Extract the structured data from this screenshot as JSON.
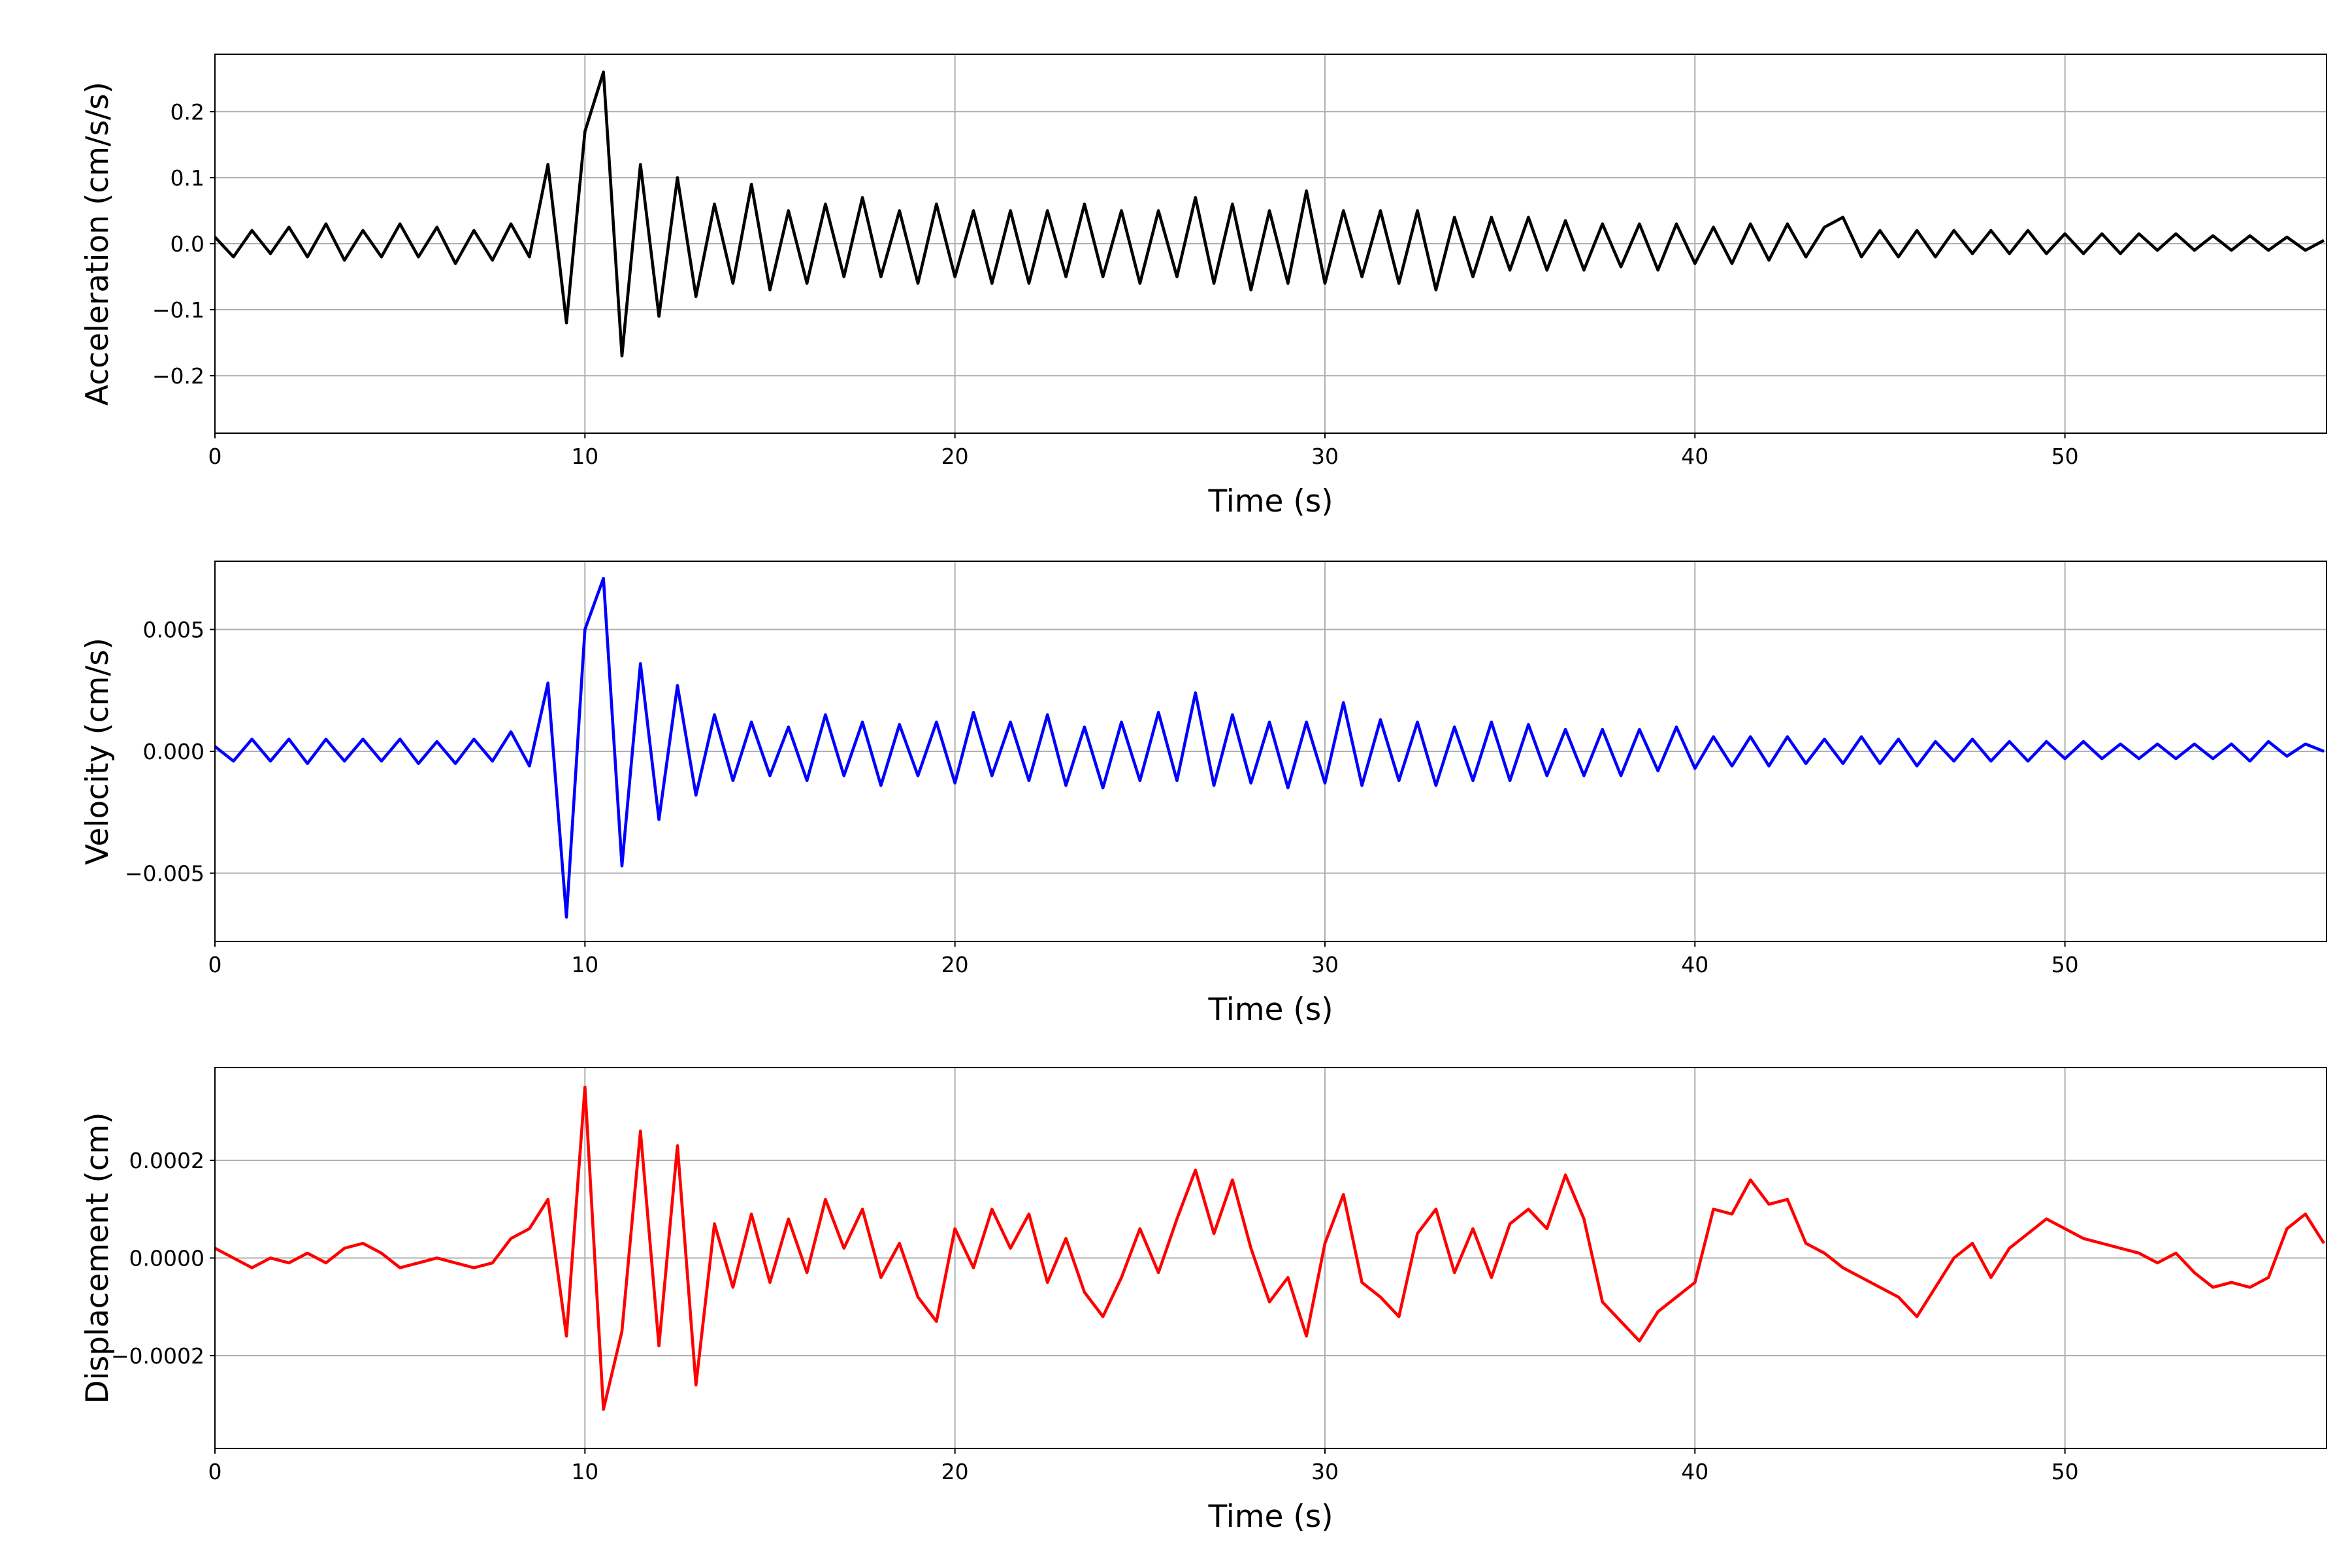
{
  "chart_data": [
    {
      "type": "line",
      "xlabel": "Time (s)",
      "ylabel": "Acceleration (cm/s/s)",
      "color": "#000000",
      "grid": true,
      "xlim": [
        0,
        57.07
      ],
      "xticks": [
        0,
        10,
        20,
        30,
        40,
        50
      ],
      "ylim": [
        -0.287,
        0.287
      ],
      "yticks": [
        {
          "value": -0.2,
          "label": "−0.2"
        },
        {
          "value": -0.1,
          "label": "−0.1"
        },
        {
          "value": 0,
          "label": "0.0"
        },
        {
          "value": 0.1,
          "label": "0.1"
        },
        {
          "value": 0.2,
          "label": "0.2"
        }
      ],
      "x": [
        0,
        0.5,
        1,
        1.5,
        2,
        2.5,
        3,
        3.5,
        4,
        4.5,
        5,
        5.5,
        6,
        6.5,
        7,
        7.5,
        8,
        8.5,
        9,
        9.5,
        10,
        10.5,
        11,
        11.5,
        12,
        12.5,
        13,
        13.5,
        14,
        14.5,
        15,
        15.5,
        16,
        16.5,
        17,
        17.5,
        18,
        18.5,
        19,
        19.5,
        20,
        20.5,
        21,
        21.5,
        22,
        22.5,
        23,
        23.5,
        24,
        24.5,
        25,
        25.5,
        26,
        26.5,
        27,
        27.5,
        28,
        28.5,
        29,
        29.5,
        30,
        30.5,
        31,
        31.5,
        32,
        32.5,
        33,
        33.5,
        34,
        34.5,
        35,
        35.5,
        36,
        36.5,
        37,
        37.5,
        38,
        38.5,
        39,
        39.5,
        40,
        40.5,
        41,
        41.5,
        42,
        42.5,
        43,
        43.5,
        44,
        44.5,
        45,
        45.5,
        46,
        46.5,
        47,
        47.5,
        48,
        48.5,
        49,
        49.5,
        50,
        50.5,
        51,
        51.5,
        52,
        52.5,
        53,
        53.5,
        54,
        54.5,
        55,
        55.5,
        56,
        56.5,
        57
      ],
      "values": [
        0.01,
        -0.02,
        0.02,
        -0.015,
        0.025,
        -0.02,
        0.03,
        -0.025,
        0.02,
        -0.02,
        0.03,
        -0.02,
        0.025,
        -0.03,
        0.02,
        -0.025,
        0.03,
        -0.02,
        0.12,
        -0.12,
        0.17,
        0.26,
        -0.17,
        0.12,
        -0.11,
        0.1,
        -0.08,
        0.06,
        -0.06,
        0.09,
        -0.07,
        0.05,
        -0.06,
        0.06,
        -0.05,
        0.07,
        -0.05,
        0.05,
        -0.06,
        0.06,
        -0.05,
        0.05,
        -0.06,
        0.05,
        -0.06,
        0.05,
        -0.05,
        0.06,
        -0.05,
        0.05,
        -0.06,
        0.05,
        -0.05,
        0.07,
        -0.06,
        0.06,
        -0.07,
        0.05,
        -0.06,
        0.08,
        -0.06,
        0.05,
        -0.05,
        0.05,
        -0.06,
        0.05,
        -0.07,
        0.04,
        -0.05,
        0.04,
        -0.04,
        0.04,
        -0.04,
        0.035,
        -0.04,
        0.03,
        -0.035,
        0.03,
        -0.04,
        0.03,
        -0.03,
        0.025,
        -0.03,
        0.03,
        -0.025,
        0.03,
        -0.02,
        0.025,
        0.04,
        -0.02,
        0.02,
        -0.02,
        0.02,
        -0.02,
        0.02,
        -0.015,
        0.02,
        -0.015,
        0.02,
        -0.015,
        0.015,
        -0.015,
        0.015,
        -0.015,
        0.015,
        -0.01,
        0.015,
        -0.01,
        0.012,
        -0.01,
        0.012,
        -0.01,
        0.01,
        -0.01,
        0.005
      ]
    },
    {
      "type": "line",
      "xlabel": "Time (s)",
      "ylabel": "Velocity (cm/s)",
      "color": "#0000ff",
      "grid": true,
      "xlim": [
        0,
        57.07
      ],
      "xticks": [
        0,
        10,
        20,
        30,
        40,
        50
      ],
      "ylim": [
        -0.0078,
        0.0078
      ],
      "yticks": [
        {
          "value": -0.005,
          "label": "−0.005"
        },
        {
          "value": 0,
          "label": "0.000"
        },
        {
          "value": 0.005,
          "label": "0.005"
        }
      ],
      "x": [
        0,
        0.5,
        1,
        1.5,
        2,
        2.5,
        3,
        3.5,
        4,
        4.5,
        5,
        5.5,
        6,
        6.5,
        7,
        7.5,
        8,
        8.5,
        9,
        9.5,
        10,
        10.5,
        11,
        11.5,
        12,
        12.5,
        13,
        13.5,
        14,
        14.5,
        15,
        15.5,
        16,
        16.5,
        17,
        17.5,
        18,
        18.5,
        19,
        19.5,
        20,
        20.5,
        21,
        21.5,
        22,
        22.5,
        23,
        23.5,
        24,
        24.5,
        25,
        25.5,
        26,
        26.5,
        27,
        27.5,
        28,
        28.5,
        29,
        29.5,
        30,
        30.5,
        31,
        31.5,
        32,
        32.5,
        33,
        33.5,
        34,
        34.5,
        35,
        35.5,
        36,
        36.5,
        37,
        37.5,
        38,
        38.5,
        39,
        39.5,
        40,
        40.5,
        41,
        41.5,
        42,
        42.5,
        43,
        43.5,
        44,
        44.5,
        45,
        45.5,
        46,
        46.5,
        47,
        47.5,
        48,
        48.5,
        49,
        49.5,
        50,
        50.5,
        51,
        51.5,
        52,
        52.5,
        53,
        53.5,
        54,
        54.5,
        55,
        55.5,
        56,
        56.5,
        57
      ],
      "values": [
        0.0002,
        -0.0004,
        0.0005,
        -0.0004,
        0.0005,
        -0.0005,
        0.0005,
        -0.0004,
        0.0005,
        -0.0004,
        0.0005,
        -0.0005,
        0.0004,
        -0.0005,
        0.0005,
        -0.0004,
        0.0008,
        -0.0006,
        0.0028,
        -0.0068,
        0.005,
        0.0071,
        -0.0047,
        0.0036,
        -0.0028,
        0.0027,
        -0.0018,
        0.0015,
        -0.0012,
        0.0012,
        -0.001,
        0.001,
        -0.0012,
        0.0015,
        -0.001,
        0.0012,
        -0.0014,
        0.0011,
        -0.001,
        0.0012,
        -0.0013,
        0.0016,
        -0.001,
        0.0012,
        -0.0012,
        0.0015,
        -0.0014,
        0.001,
        -0.0015,
        0.0012,
        -0.0012,
        0.0016,
        -0.0012,
        0.0024,
        -0.0014,
        0.0015,
        -0.0013,
        0.0012,
        -0.0015,
        0.0012,
        -0.0013,
        0.002,
        -0.0014,
        0.0013,
        -0.0012,
        0.0012,
        -0.0014,
        0.001,
        -0.0012,
        0.0012,
        -0.0012,
        0.0011,
        -0.001,
        0.0009,
        -0.001,
        0.0009,
        -0.001,
        0.0009,
        -0.0008,
        0.001,
        -0.0007,
        0.0006,
        -0.0006,
        0.0006,
        -0.0006,
        0.0006,
        -0.0005,
        0.0005,
        -0.0005,
        0.0006,
        -0.0005,
        0.0005,
        -0.0006,
        0.0004,
        -0.0004,
        0.0005,
        -0.0004,
        0.0004,
        -0.0004,
        0.0004,
        -0.0003,
        0.0004,
        -0.0003,
        0.0003,
        -0.0003,
        0.0003,
        -0.0003,
        0.0003,
        -0.0003,
        0.0003,
        -0.0004,
        0.0004,
        -0.0002,
        0.0003,
        0
      ]
    },
    {
      "type": "line",
      "xlabel": "Time (s)",
      "ylabel": "Displacement (cm)",
      "color": "#ff0000",
      "grid": true,
      "xlim": [
        0,
        57.07
      ],
      "xticks": [
        0,
        10,
        20,
        30,
        40,
        50
      ],
      "ylim": [
        -0.00039,
        0.00039
      ],
      "yticks": [
        {
          "value": -0.0002,
          "label": "−0.0002"
        },
        {
          "value": 0,
          "label": "0.0000"
        },
        {
          "value": 0.0002,
          "label": "0.0002"
        }
      ],
      "x": [
        0,
        0.5,
        1,
        1.5,
        2,
        2.5,
        3,
        3.5,
        4,
        4.5,
        5,
        5.5,
        6,
        6.5,
        7,
        7.5,
        8,
        8.5,
        9,
        9.5,
        10,
        10.5,
        11,
        11.5,
        12,
        12.5,
        13,
        13.5,
        14,
        14.5,
        15,
        15.5,
        16,
        16.5,
        17,
        17.5,
        18,
        18.5,
        19,
        19.5,
        20,
        20.5,
        21,
        21.5,
        22,
        22.5,
        23,
        23.5,
        24,
        24.5,
        25,
        25.5,
        26,
        26.5,
        27,
        27.5,
        28,
        28.5,
        29,
        29.5,
        30,
        30.5,
        31,
        31.5,
        32,
        32.5,
        33,
        33.5,
        34,
        34.5,
        35,
        35.5,
        36,
        36.5,
        37,
        37.5,
        38,
        38.5,
        39,
        39.5,
        40,
        40.5,
        41,
        41.5,
        42,
        42.5,
        43,
        43.5,
        44,
        44.5,
        45,
        45.5,
        46,
        46.5,
        47,
        47.5,
        48,
        48.5,
        49,
        49.5,
        50,
        50.5,
        51,
        51.5,
        52,
        52.5,
        53,
        53.5,
        54,
        54.5,
        55,
        55.5,
        56,
        56.5,
        57
      ],
      "values": [
        2e-05,
        0,
        -2e-05,
        0,
        -1e-05,
        1e-05,
        -1e-05,
        2e-05,
        3e-05,
        1e-05,
        -2e-05,
        -1e-05,
        0,
        -1e-05,
        -2e-05,
        -1e-05,
        4e-05,
        6e-05,
        0.00012,
        -0.00016,
        0.00035,
        -0.00031,
        -0.00015,
        0.00026,
        -0.00018,
        0.00023,
        -0.00026,
        7e-05,
        -6e-05,
        9e-05,
        -5e-05,
        8e-05,
        -3e-05,
        0.00012,
        2e-05,
        0.0001,
        -4e-05,
        3e-05,
        -8e-05,
        -0.00013,
        6e-05,
        -2e-05,
        0.0001,
        2e-05,
        9e-05,
        -5e-05,
        4e-05,
        -7e-05,
        -0.00012,
        -4e-05,
        6e-05,
        -3e-05,
        8e-05,
        0.00018,
        5e-05,
        0.00016,
        2e-05,
        -9e-05,
        -4e-05,
        -0.00016,
        3e-05,
        0.00013,
        -5e-05,
        -8e-05,
        -0.00012,
        5e-05,
        0.0001,
        -3e-05,
        6e-05,
        -4e-05,
        7e-05,
        0.0001,
        6e-05,
        0.00017,
        8e-05,
        -9e-05,
        -0.00013,
        -0.00017,
        -0.00011,
        -8e-05,
        -5e-05,
        0.0001,
        9e-05,
        0.00016,
        0.00011,
        0.00012,
        3e-05,
        1e-05,
        -2e-05,
        -4e-05,
        -6e-05,
        -8e-05,
        -0.00012,
        -6e-05,
        0,
        3e-05,
        -4e-05,
        2e-05,
        5e-05,
        8e-05,
        6e-05,
        4e-05,
        3e-05,
        2e-05,
        1e-05,
        -1e-05,
        1e-05,
        -3e-05,
        -6e-05,
        -5e-05,
        -6e-05,
        -4e-05,
        6e-05,
        9e-05,
        3e-05
      ]
    }
  ]
}
